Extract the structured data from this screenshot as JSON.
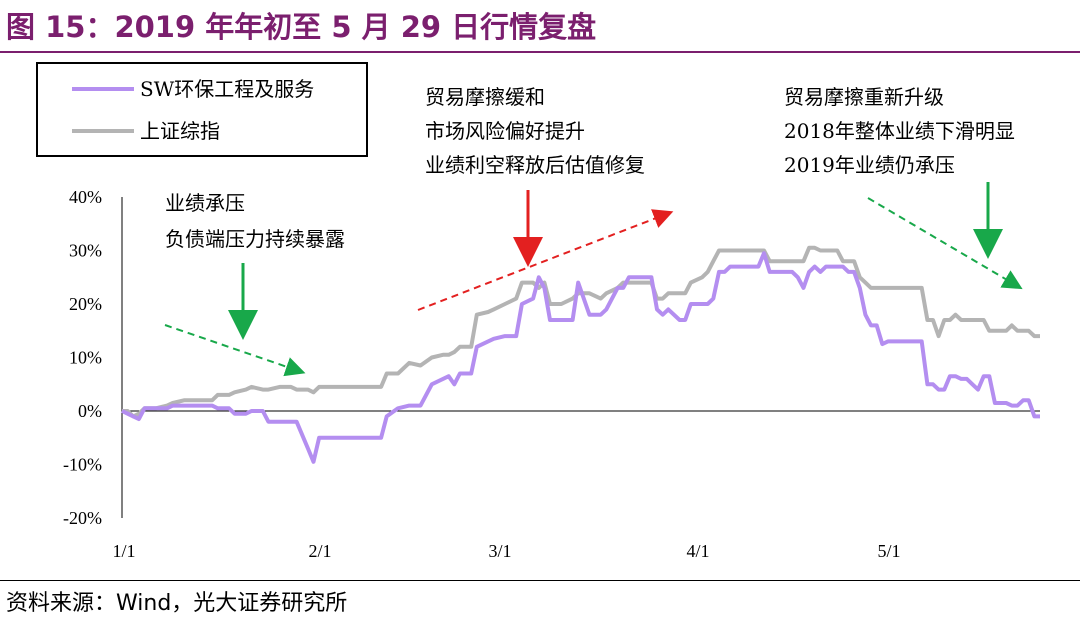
{
  "title": "图 15：2019 年年初至 5 月 29 日行情复盘",
  "source": "资料来源：Wind，光大证券研究所",
  "colors": {
    "title": "#7b1f6e",
    "sw": "#b48ef0",
    "sz": "#b4b4b4",
    "red": "#e32020",
    "green": "#18a84a"
  },
  "annotations": {
    "a1": [
      "业绩承压",
      "负债端压力持续暴露"
    ],
    "a2": [
      "贸易摩擦缓和",
      "市场风险偏好提升",
      "业绩利空释放后估值修复"
    ],
    "a3": [
      "贸易摩擦重新升级",
      "2018年整体业绩下滑明显",
      "2019年业绩仍承压"
    ]
  },
  "chart_data": {
    "type": "line",
    "title": "",
    "xlabel": "",
    "ylabel": "",
    "x_ticks": [
      "1/1",
      "2/1",
      "3/1",
      "4/1",
      "5/1"
    ],
    "y_ticks": [
      "40%",
      "30%",
      "20%",
      "10%",
      "0%",
      "-10%",
      "-20%"
    ],
    "ylim": [
      -20,
      40
    ],
    "legend_position": "top-left",
    "series": [
      {
        "name": "SW环保工程及服务",
        "color": "#b48ef0",
        "points": [
          [
            1,
            0
          ],
          [
            3,
            -1
          ],
          [
            4,
            -1.5
          ],
          [
            5,
            0.5
          ],
          [
            7,
            0.5
          ],
          [
            9,
            0.5
          ],
          [
            10,
            1
          ],
          [
            12,
            1
          ],
          [
            14,
            1
          ],
          [
            15,
            1
          ],
          [
            17,
            1
          ],
          [
            18,
            0.5
          ],
          [
            20,
            0.5
          ],
          [
            21,
            -0.5
          ],
          [
            23,
            -0.5
          ],
          [
            24,
            0
          ],
          [
            26,
            0
          ],
          [
            27,
            -2
          ],
          [
            29,
            -2
          ],
          [
            31,
            -2
          ],
          [
            32,
            -2
          ],
          [
            34,
            -7
          ],
          [
            35,
            -9.5
          ],
          [
            36,
            -5
          ],
          [
            38,
            -5
          ],
          [
            41,
            -5
          ],
          [
            43,
            -5
          ],
          [
            45,
            -5
          ],
          [
            47,
            -5
          ],
          [
            48,
            -1
          ],
          [
            50,
            0.5
          ],
          [
            52,
            1
          ],
          [
            54,
            1
          ],
          [
            56,
            5
          ],
          [
            58,
            6
          ],
          [
            59,
            6.5
          ],
          [
            60,
            5
          ],
          [
            61,
            7
          ],
          [
            63,
            7
          ],
          [
            64,
            12
          ],
          [
            66,
            13
          ],
          [
            67,
            13.5
          ],
          [
            69,
            14
          ],
          [
            71,
            14
          ],
          [
            72,
            20
          ],
          [
            74,
            21
          ],
          [
            75,
            25
          ],
          [
            76,
            23
          ],
          [
            77,
            17
          ],
          [
            79,
            17
          ],
          [
            81,
            17
          ],
          [
            82,
            24
          ],
          [
            83,
            21
          ],
          [
            84,
            18
          ],
          [
            86,
            18
          ],
          [
            87,
            19
          ],
          [
            89,
            23
          ],
          [
            90,
            23
          ],
          [
            91,
            25
          ],
          [
            92,
            25
          ],
          [
            93,
            25
          ],
          [
            95,
            25
          ],
          [
            96,
            19
          ],
          [
            97,
            18
          ],
          [
            98,
            19
          ],
          [
            100,
            17
          ],
          [
            101,
            17
          ],
          [
            102,
            20
          ],
          [
            104,
            20
          ],
          [
            105,
            20
          ],
          [
            106,
            21
          ],
          [
            107,
            26
          ],
          [
            108,
            26
          ],
          [
            109,
            27
          ],
          [
            112,
            27
          ],
          [
            114,
            27
          ],
          [
            115,
            29.5
          ],
          [
            116,
            26
          ],
          [
            118,
            26
          ],
          [
            120,
            26
          ],
          [
            121,
            25
          ],
          [
            122,
            23
          ],
          [
            123,
            26
          ],
          [
            124,
            27
          ],
          [
            125,
            26
          ],
          [
            126,
            27
          ],
          [
            127,
            27
          ],
          [
            128,
            27
          ],
          [
            129,
            27
          ],
          [
            130,
            26
          ],
          [
            131,
            26
          ],
          [
            132,
            23
          ],
          [
            133,
            18
          ],
          [
            134,
            16
          ],
          [
            135,
            16
          ],
          [
            136,
            12.5
          ],
          [
            137,
            13
          ],
          [
            138,
            13
          ],
          [
            141,
            13
          ],
          [
            142,
            13
          ],
          [
            143,
            13
          ],
          [
            144,
            5
          ],
          [
            145,
            5
          ],
          [
            146,
            4
          ],
          [
            147,
            4
          ],
          [
            148,
            6.5
          ],
          [
            149,
            6.5
          ],
          [
            150,
            6
          ],
          [
            151,
            6
          ],
          [
            152,
            5
          ],
          [
            153,
            4
          ],
          [
            154,
            6.5
          ],
          [
            155,
            6.5
          ],
          [
            156,
            1.5
          ],
          [
            158,
            1.5
          ],
          [
            159,
            1
          ],
          [
            160,
            1
          ],
          [
            161,
            2
          ],
          [
            162,
            2
          ],
          [
            163,
            -1
          ],
          [
            164,
            -1
          ]
        ]
      },
      {
        "name": "上证综指",
        "color": "#b4b4b4",
        "points": [
          [
            1,
            0
          ],
          [
            2,
            0
          ],
          [
            3,
            -1
          ],
          [
            4,
            -0.5
          ],
          [
            5,
            0.5
          ],
          [
            7,
            0.5
          ],
          [
            9,
            1
          ],
          [
            10,
            1.5
          ],
          [
            12,
            2
          ],
          [
            14,
            2
          ],
          [
            15,
            2
          ],
          [
            17,
            2
          ],
          [
            18,
            3
          ],
          [
            20,
            3
          ],
          [
            21,
            3.5
          ],
          [
            23,
            4
          ],
          [
            24,
            4.5
          ],
          [
            26,
            4
          ],
          [
            27,
            4
          ],
          [
            29,
            4.5
          ],
          [
            31,
            4.5
          ],
          [
            32,
            4
          ],
          [
            34,
            4
          ],
          [
            35,
            3.5
          ],
          [
            36,
            4.5
          ],
          [
            38,
            4.5
          ],
          [
            41,
            4.5
          ],
          [
            43,
            4.5
          ],
          [
            45,
            4.5
          ],
          [
            47,
            4.5
          ],
          [
            48,
            7
          ],
          [
            50,
            7
          ],
          [
            52,
            9
          ],
          [
            54,
            8.5
          ],
          [
            56,
            10
          ],
          [
            58,
            10.5
          ],
          [
            59,
            10.5
          ],
          [
            60,
            11
          ],
          [
            61,
            12
          ],
          [
            63,
            12
          ],
          [
            64,
            18
          ],
          [
            66,
            18.5
          ],
          [
            67,
            19
          ],
          [
            69,
            20
          ],
          [
            71,
            21
          ],
          [
            72,
            24
          ],
          [
            74,
            24
          ],
          [
            75,
            23
          ],
          [
            76,
            24
          ],
          [
            77,
            20
          ],
          [
            79,
            20
          ],
          [
            81,
            21
          ],
          [
            82,
            22
          ],
          [
            83,
            22
          ],
          [
            84,
            22
          ],
          [
            86,
            21
          ],
          [
            87,
            22
          ],
          [
            89,
            23
          ],
          [
            90,
            24
          ],
          [
            91,
            24
          ],
          [
            92,
            24
          ],
          [
            93,
            24
          ],
          [
            95,
            24
          ],
          [
            96,
            21
          ],
          [
            97,
            21
          ],
          [
            98,
            22
          ],
          [
            100,
            22
          ],
          [
            101,
            22
          ],
          [
            102,
            24
          ],
          [
            104,
            25
          ],
          [
            105,
            26
          ],
          [
            106,
            28
          ],
          [
            107,
            30
          ],
          [
            108,
            30
          ],
          [
            109,
            30
          ],
          [
            112,
            30
          ],
          [
            114,
            30
          ],
          [
            115,
            30
          ],
          [
            116,
            28
          ],
          [
            118,
            28
          ],
          [
            120,
            28
          ],
          [
            121,
            28
          ],
          [
            122,
            28
          ],
          [
            123,
            30.5
          ],
          [
            124,
            30.5
          ],
          [
            125,
            30
          ],
          [
            126,
            30
          ],
          [
            127,
            30
          ],
          [
            128,
            30
          ],
          [
            129,
            28
          ],
          [
            130,
            28
          ],
          [
            131,
            28
          ],
          [
            132,
            25
          ],
          [
            133,
            24
          ],
          [
            134,
            23
          ],
          [
            135,
            23
          ],
          [
            136,
            23
          ],
          [
            137,
            23
          ],
          [
            138,
            23
          ],
          [
            141,
            23
          ],
          [
            142,
            23
          ],
          [
            143,
            23
          ],
          [
            144,
            17
          ],
          [
            145,
            17
          ],
          [
            146,
            14
          ],
          [
            147,
            17
          ],
          [
            148,
            17
          ],
          [
            149,
            18
          ],
          [
            150,
            17
          ],
          [
            151,
            17
          ],
          [
            152,
            17
          ],
          [
            153,
            17
          ],
          [
            154,
            17
          ],
          [
            155,
            15
          ],
          [
            156,
            15
          ],
          [
            158,
            15
          ],
          [
            159,
            16
          ],
          [
            160,
            15
          ],
          [
            161,
            15
          ],
          [
            162,
            15
          ],
          [
            163,
            14
          ],
          [
            164,
            14
          ]
        ]
      }
    ]
  }
}
